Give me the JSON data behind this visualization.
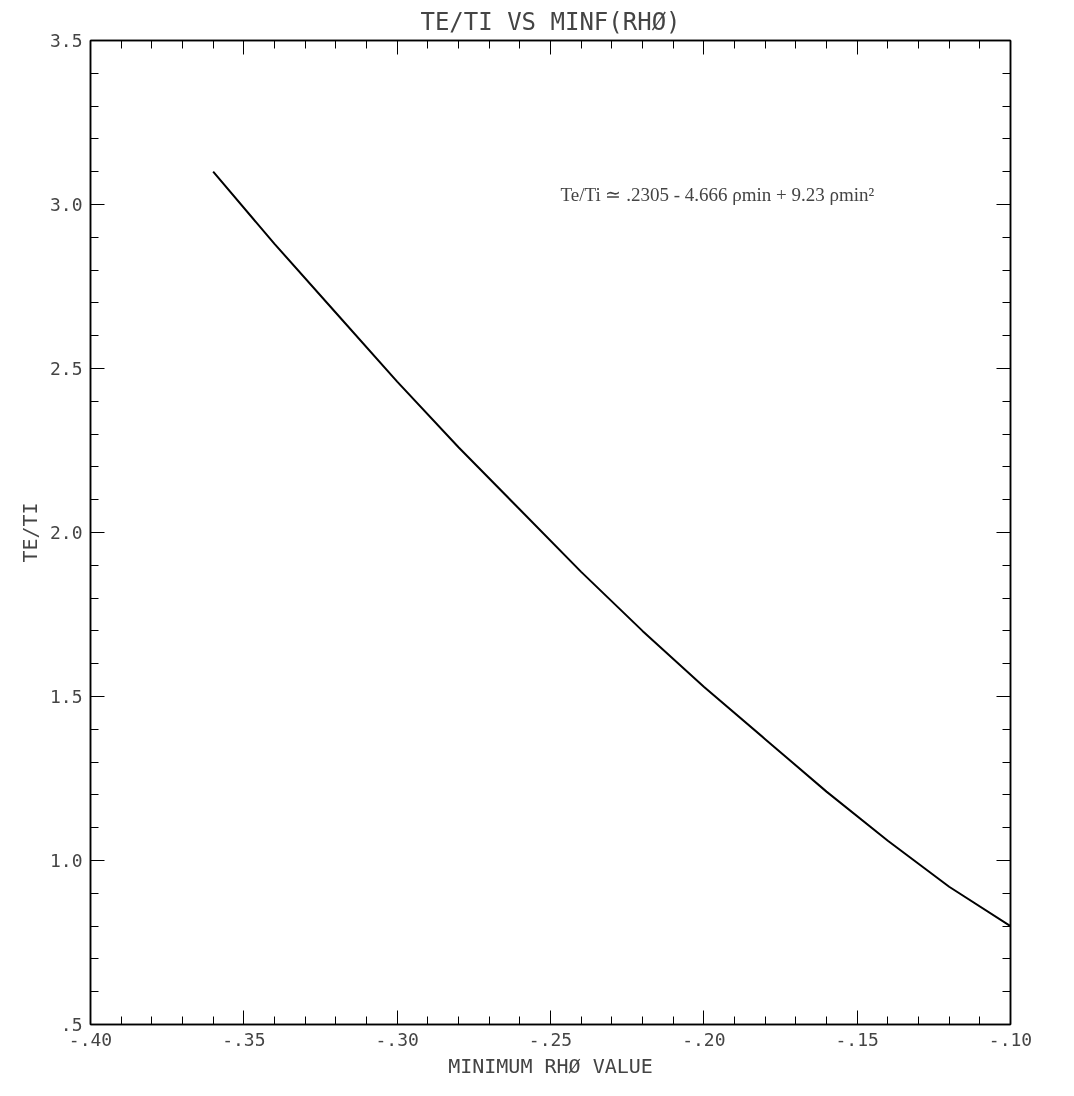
{
  "chart_data": {
    "type": "line",
    "title": "TE/TI VS MINF(RHØ)",
    "xlabel": "MINIMUM RHØ VALUE",
    "ylabel": "TE/TI",
    "annotations": [
      "Te/Ti ≃ .2305 - 4.666 ρmin + 9.23 ρmin²"
    ],
    "x": [
      -0.36,
      -0.34,
      -0.32,
      -0.3,
      -0.28,
      -0.26,
      -0.24,
      -0.22,
      -0.2,
      -0.18,
      -0.16,
      -0.14,
      -0.12,
      -0.1
    ],
    "series": [
      {
        "color": "#000000",
        "values": [
          3.1,
          2.88,
          2.67,
          2.46,
          2.26,
          2.07,
          1.88,
          1.7,
          1.53,
          1.37,
          1.21,
          1.06,
          0.92,
          0.8
        ]
      }
    ],
    "line_style": "solid",
    "xlim": [
      -0.4,
      -0.1
    ],
    "ylim": [
      0.5,
      3.5
    ],
    "xticks": [
      {
        "value": -0.4,
        "label": "-.40"
      },
      {
        "value": -0.39,
        "label": null
      },
      {
        "value": -0.38,
        "label": null
      },
      {
        "value": -0.37,
        "label": null
      },
      {
        "value": -0.36,
        "label": null
      },
      {
        "value": -0.35,
        "label": "-.35"
      },
      {
        "value": -0.34,
        "label": null
      },
      {
        "value": -0.33,
        "label": null
      },
      {
        "value": -0.32,
        "label": null
      },
      {
        "value": -0.31,
        "label": null
      },
      {
        "value": -0.3,
        "label": "-.30"
      },
      {
        "value": -0.29,
        "label": null
      },
      {
        "value": -0.28,
        "label": null
      },
      {
        "value": -0.27,
        "label": null
      },
      {
        "value": -0.26,
        "label": null
      },
      {
        "value": -0.25,
        "label": "-.25"
      },
      {
        "value": -0.24,
        "label": null
      },
      {
        "value": -0.23,
        "label": null
      },
      {
        "value": -0.22,
        "label": null
      },
      {
        "value": -0.21,
        "label": null
      },
      {
        "value": -0.2,
        "label": "-.20"
      },
      {
        "value": -0.19,
        "label": null
      },
      {
        "value": -0.18,
        "label": null
      },
      {
        "value": -0.17,
        "label": null
      },
      {
        "value": -0.16,
        "label": null
      },
      {
        "value": -0.15,
        "label": "-.15"
      },
      {
        "value": -0.14,
        "label": null
      },
      {
        "value": -0.13,
        "label": null
      },
      {
        "value": -0.12,
        "label": null
      },
      {
        "value": -0.11,
        "label": null
      },
      {
        "value": -0.1,
        "label": "-.10"
      }
    ],
    "yticks": [
      {
        "value": 0.5,
        "label": ".5"
      },
      {
        "value": 0.6,
        "label": null
      },
      {
        "value": 0.7,
        "label": null
      },
      {
        "value": 0.8,
        "label": null
      },
      {
        "value": 0.9,
        "label": null
      },
      {
        "value": 1.0,
        "label": "1.0"
      },
      {
        "value": 1.1,
        "label": null
      },
      {
        "value": 1.2,
        "label": null
      },
      {
        "value": 1.3,
        "label": null
      },
      {
        "value": 1.4,
        "label": null
      },
      {
        "value": 1.5,
        "label": "1.5"
      },
      {
        "value": 1.6,
        "label": null
      },
      {
        "value": 1.7,
        "label": null
      },
      {
        "value": 1.8,
        "label": null
      },
      {
        "value": 1.9,
        "label": null
      },
      {
        "value": 2.0,
        "label": "2.0"
      },
      {
        "value": 2.1,
        "label": null
      },
      {
        "value": 2.2,
        "label": null
      },
      {
        "value": 2.3,
        "label": null
      },
      {
        "value": 2.4,
        "label": null
      },
      {
        "value": 2.5,
        "label": "2.5"
      },
      {
        "value": 2.6,
        "label": null
      },
      {
        "value": 2.7,
        "label": null
      },
      {
        "value": 2.8,
        "label": null
      },
      {
        "value": 2.9,
        "label": null
      },
      {
        "value": 3.0,
        "label": "3.0"
      },
      {
        "value": 3.1,
        "label": null
      },
      {
        "value": 3.2,
        "label": null
      },
      {
        "value": 3.3,
        "label": null
      },
      {
        "value": 3.4,
        "label": null
      },
      {
        "value": 3.5,
        "label": "3.5"
      }
    ]
  }
}
